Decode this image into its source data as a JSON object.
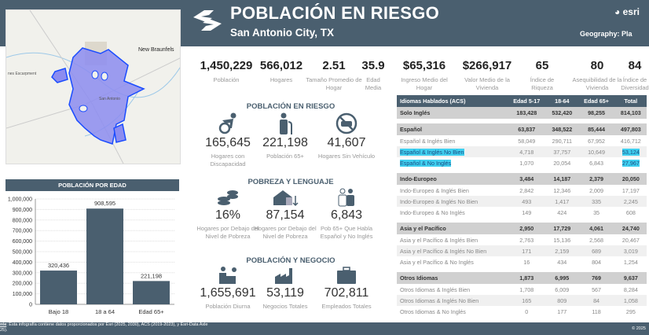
{
  "header": {
    "title": "POBLACIÓN EN RIESGO",
    "subtitle": "San Antonio City, TX",
    "brand": "esri",
    "geography": "Geography: Pla"
  },
  "map": {
    "labels": [
      "New Braunfels",
      "nes Escarpment",
      "San Antonio"
    ],
    "shapes_color": "#8c8cf0",
    "outline_color": "#1a4cff"
  },
  "stats": [
    {
      "value": "1,450,229",
      "label": "Población"
    },
    {
      "value": "566,012",
      "label": "Hogares"
    },
    {
      "value": "2.51",
      "label": "Tamaño Promedio de Hogar"
    },
    {
      "value": "35.9",
      "label": "Edad Media"
    },
    {
      "value": "$65,316",
      "label": "Ingreso Medio del Hogar"
    },
    {
      "value": "$266,917",
      "label": "Valor Medio de la Vivienda"
    },
    {
      "value": "65",
      "label": "Índice de Riqueza"
    },
    {
      "value": "80",
      "label": "Asequibilidad de la Vivienda"
    },
    {
      "value": "84",
      "label": "Índice de Diversidad"
    }
  ],
  "sections": {
    "riesgo": {
      "title": "POBLACIÓN EN RIESGO",
      "tiles": [
        {
          "icon": "wheelchair-icon",
          "value": "165,645",
          "label": "Hogares con Discapacidad"
        },
        {
          "icon": "elderly-person-icon",
          "value": "221,198",
          "label": "Población 65+"
        },
        {
          "icon": "no-car-icon",
          "value": "41,607",
          "label": "Hogares Sin Vehículo"
        }
      ]
    },
    "pobreza": {
      "title": "POBREZA Y LENGUAJE",
      "tiles": [
        {
          "icon": "coins-icon",
          "value": "16%",
          "label": "Hogares por Debajo del Nivel de Pobreza"
        },
        {
          "icon": "house-down-icon",
          "value": "87,154",
          "label": "Hogares por Debajo del Nivel de Pobreza"
        },
        {
          "icon": "people-icon",
          "value": "6,843",
          "label": "Pob 65+ Que Habla Español y No Inglés"
        }
      ]
    },
    "negocio": {
      "title": "POBLACIÓN Y NEGOCIO",
      "tiles": [
        {
          "icon": "daytime-worker-icon",
          "value": "1,655,691",
          "label": "Población Diurna"
        },
        {
          "icon": "factory-icon",
          "value": "53,119",
          "label": "Negocios Totales"
        },
        {
          "icon": "briefcase-icon",
          "value": "702,811",
          "label": "Empleados Totales"
        }
      ]
    }
  },
  "table": {
    "headers": [
      "Idiomas Hablados (ACS)",
      "Edad 5-17",
      "18-64",
      "Edad 65+",
      "Total"
    ],
    "rows": [
      {
        "type": "g",
        "cells": [
          "Solo Inglés",
          "183,428",
          "532,420",
          "98,255",
          "814,103"
        ]
      },
      {
        "type": "gap"
      },
      {
        "type": "g",
        "cells": [
          "Español",
          "63,837",
          "348,522",
          "85,444",
          "497,803"
        ]
      },
      {
        "type": "s",
        "cells": [
          "Español & Inglés Bien",
          "58,049",
          "290,711",
          "67,952",
          "416,712"
        ]
      },
      {
        "type": "s alt",
        "hl": true,
        "cells": [
          "Español & Inglés No Bien",
          "4,718",
          "37,757",
          "10,649",
          "53,124"
        ]
      },
      {
        "type": "s",
        "hl": true,
        "cells": [
          "Español & No Inglés",
          "1,070",
          "20,054",
          "6,843",
          "27,967"
        ]
      },
      {
        "type": "gap"
      },
      {
        "type": "g",
        "cells": [
          "Indo-Europeo",
          "3,484",
          "14,187",
          "2,379",
          "20,050"
        ]
      },
      {
        "type": "s",
        "cells": [
          "Indo-Europeo & Inglés Bien",
          "2,842",
          "12,346",
          "2,009",
          "17,197"
        ]
      },
      {
        "type": "s alt",
        "cells": [
          "Indo-Europeo & Inglés No Bien",
          "493",
          "1,417",
          "335",
          "2,245"
        ]
      },
      {
        "type": "s",
        "cells": [
          "Indo-Europeo & No Inglés",
          "149",
          "424",
          "35",
          "608"
        ]
      },
      {
        "type": "gap"
      },
      {
        "type": "g",
        "cells": [
          "Asia y el Pacífico",
          "2,950",
          "17,729",
          "4,061",
          "24,740"
        ]
      },
      {
        "type": "s",
        "cells": [
          "Asia y el Pacífico & Inglés Bien",
          "2,763",
          "15,136",
          "2,568",
          "20,467"
        ]
      },
      {
        "type": "s alt",
        "cells": [
          "Asia y el Pacífico & Inglés No Bien",
          "171",
          "2,159",
          "689",
          "3,019"
        ]
      },
      {
        "type": "s",
        "cells": [
          "Asia y el Pacífico & No Inglés",
          "16",
          "434",
          "804",
          "1,254"
        ]
      },
      {
        "type": "gap"
      },
      {
        "type": "g",
        "cells": [
          "Otros Idiomas",
          "1,873",
          "6,995",
          "769",
          "9,637"
        ]
      },
      {
        "type": "s",
        "cells": [
          "Otros Idiomas &  Inglés Bien",
          "1,708",
          "6,009",
          "567",
          "8,284"
        ]
      },
      {
        "type": "s alt",
        "cells": [
          "Otros Idiomas & Inglés No Bien",
          "165",
          "809",
          "84",
          "1,058"
        ]
      },
      {
        "type": "s",
        "cells": [
          "Otros Idiomas & No Inglés",
          "0",
          "177",
          "118",
          "295"
        ]
      }
    ],
    "highlight_color": "#3fd0f0"
  },
  "chart_data": {
    "type": "bar",
    "title": "POBLACIÓN POR EDAD",
    "categories": [
      "Bajo 18",
      "18 a 64",
      "Edad 65+"
    ],
    "values": [
      320436,
      908595,
      221198
    ],
    "data_labels": [
      "320,436",
      "908,595",
      "221,198"
    ],
    "ylim": [
      0,
      1000000
    ],
    "yticks": [
      "0",
      "100,000",
      "200,000",
      "300,000",
      "400,000",
      "500,000",
      "600,000",
      "700,000",
      "800,000",
      "900,000",
      "1,000,000"
    ],
    "grid": true,
    "bar_color": "#4a5f6f"
  },
  "footer": {
    "line1_prefix": "nte",
    "line1": ": Esta infografía contiene datos proporcionados por Esri (2025, 2030), ACS (2019-2023), y Esri-Data Axle",
    "line2": "25).",
    "copyright": "© 2025"
  }
}
